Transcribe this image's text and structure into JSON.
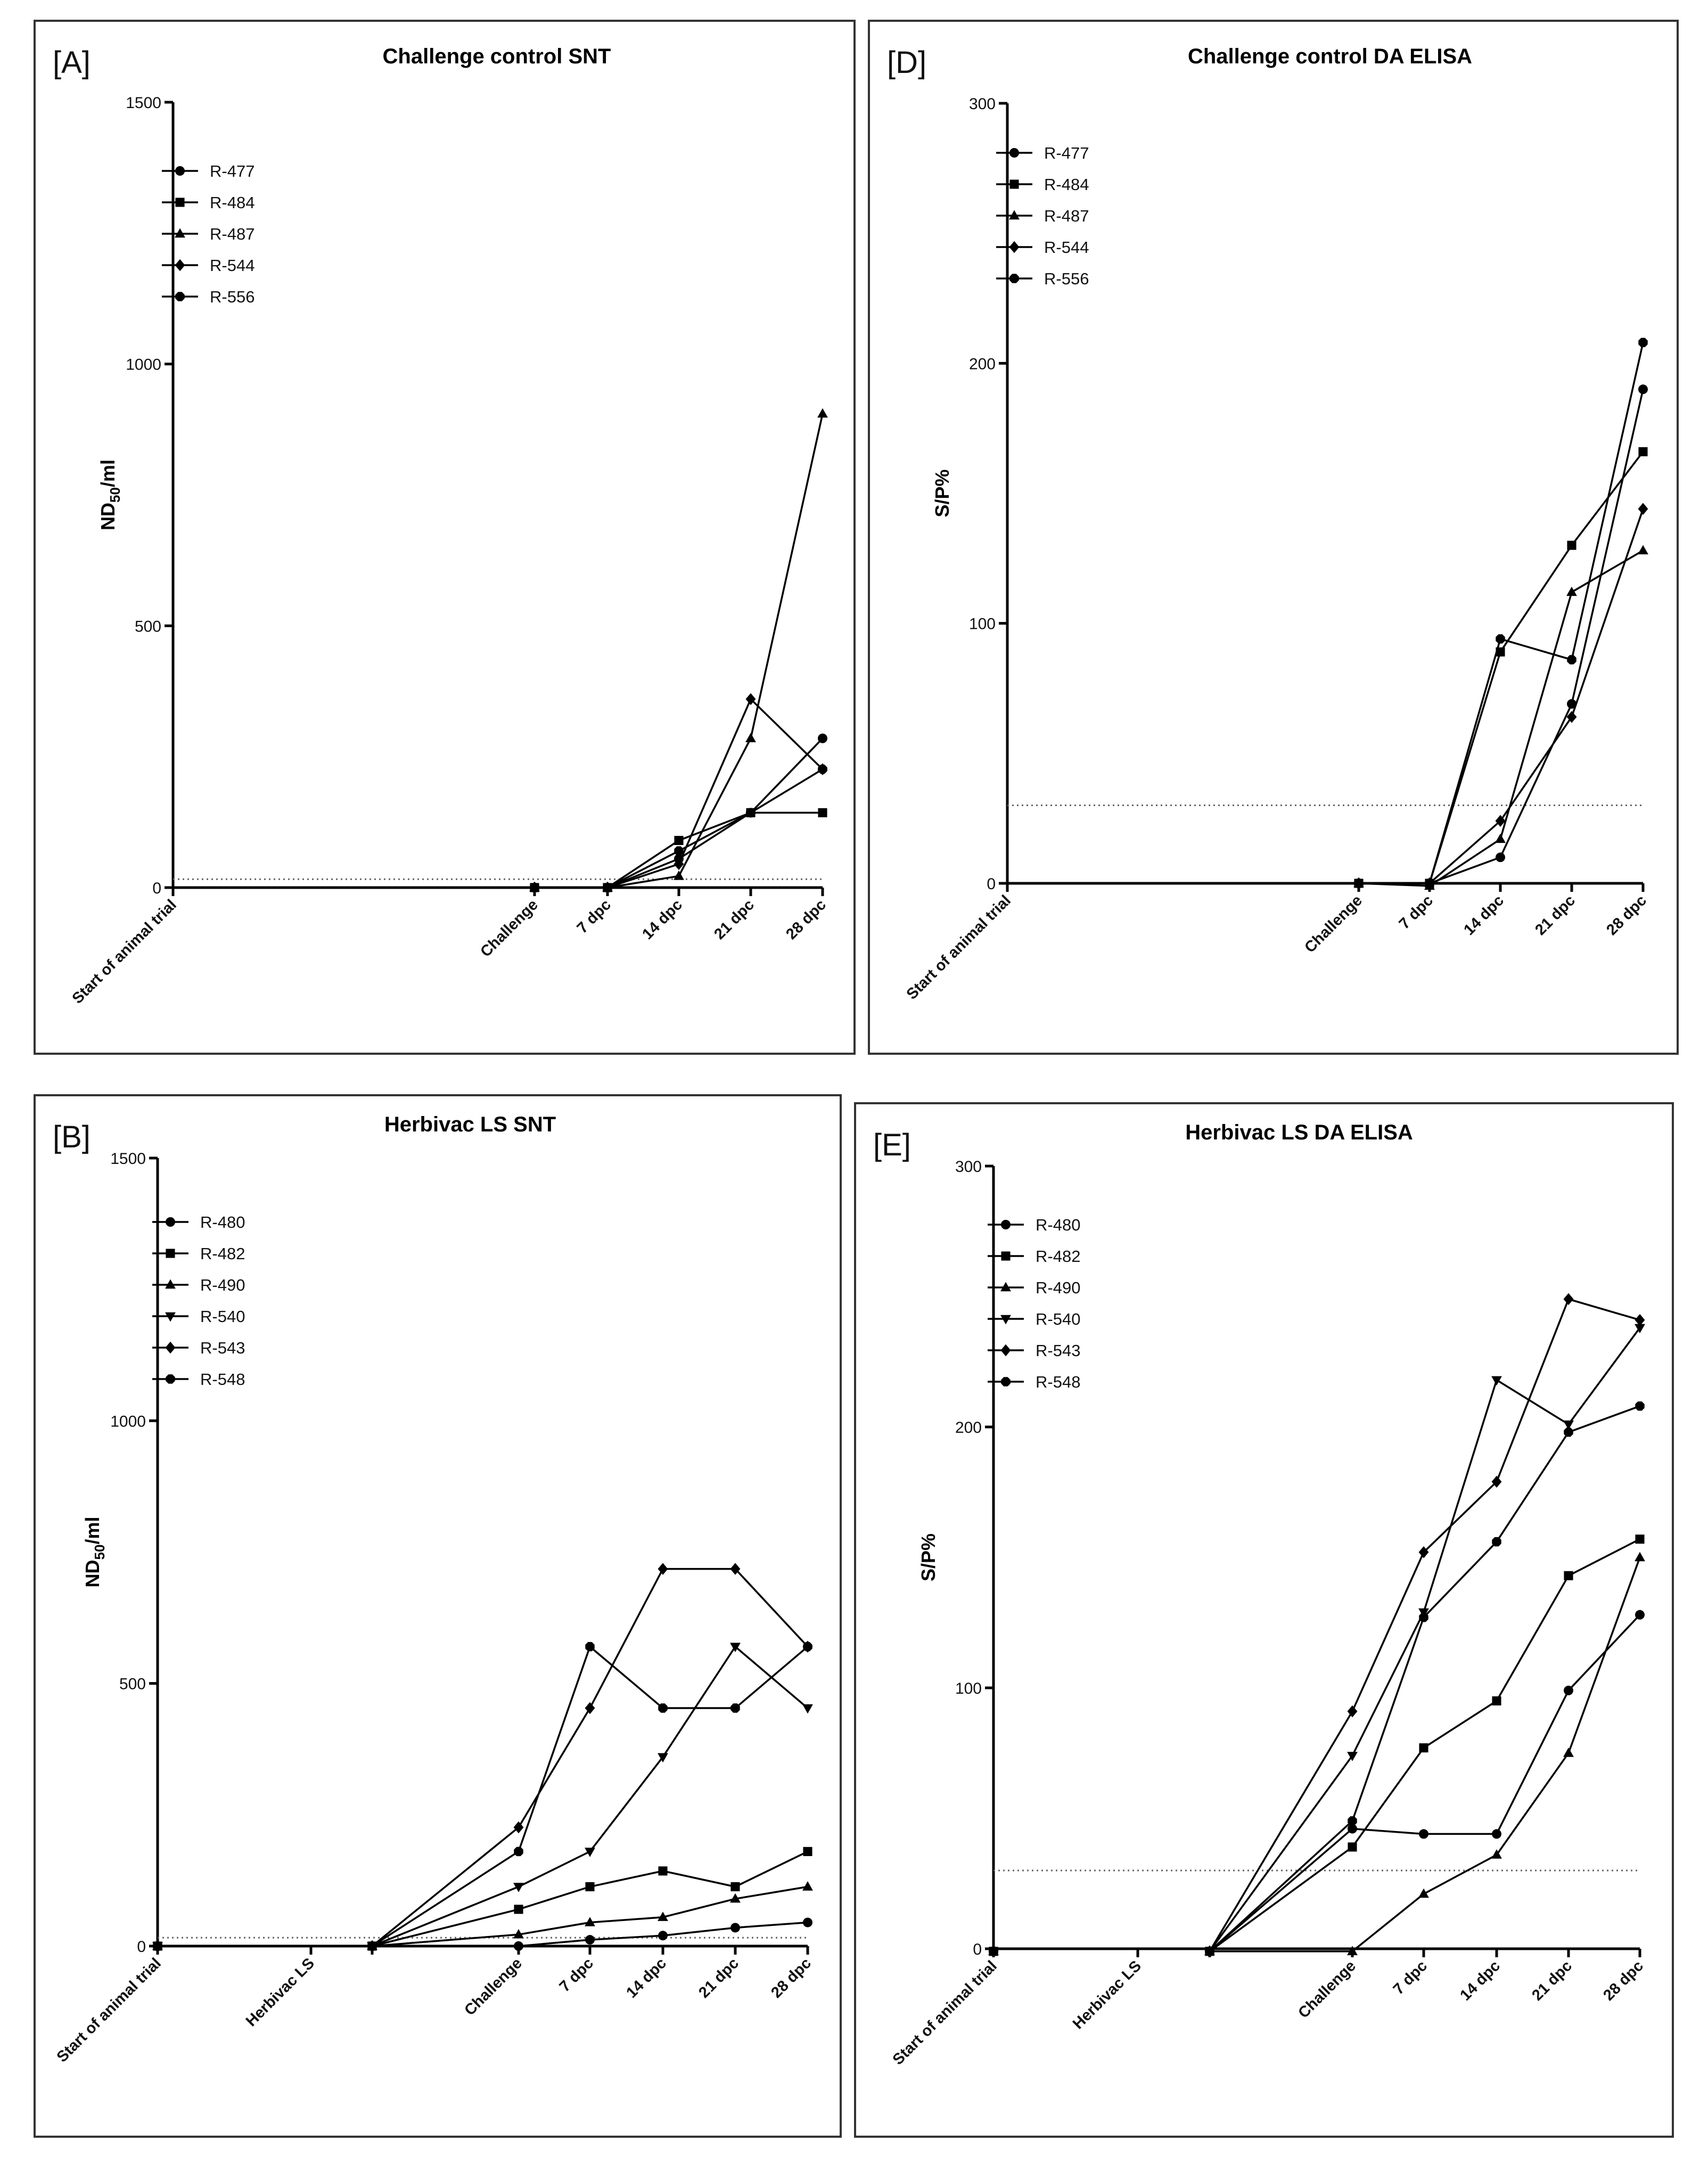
{
  "panels": [
    {
      "label": "[A]",
      "chart_data": {
        "type": "line",
        "title": "Challenge control SNT",
        "xlabel": "",
        "ylabel": "ND50/ml",
        "ylim": [
          0,
          1500
        ],
        "yticks": [
          0,
          500,
          1000,
          1500
        ],
        "categories": [
          "Start of animal trial",
          "Challenge",
          "7 dpc",
          "14 dpc",
          "21 dpc",
          "28 dpc"
        ],
        "threshold": 16,
        "series": [
          {
            "name": "R-477",
            "marker": "circle",
            "values": [
              null,
              0,
              0,
              55,
              143,
              285
            ]
          },
          {
            "name": "R-484",
            "marker": "square",
            "values": [
              null,
              0,
              0,
              90,
              143,
              143
            ]
          },
          {
            "name": "R-487",
            "marker": "triangle-up",
            "values": [
              null,
              0,
              0,
              22,
              285,
              905
            ]
          },
          {
            "name": "R-544",
            "marker": "diamond",
            "values": [
              null,
              0,
              0,
              45,
              360,
              226
            ]
          },
          {
            "name": "R-556",
            "marker": "hexagon",
            "values": [
              null,
              0,
              0,
              70,
              143,
              226
            ]
          }
        ]
      }
    },
    {
      "label": "[D]",
      "chart_data": {
        "type": "line",
        "title": "Challenge control DA ELISA",
        "xlabel": "",
        "ylabel": "S/P%",
        "ylim": [
          0,
          300
        ],
        "yticks": [
          0,
          100,
          200,
          300
        ],
        "categories": [
          "Start of animal trial",
          "Challenge",
          "7 dpc",
          "14 dpc",
          "21 dpc",
          "28 dpc"
        ],
        "threshold": 30,
        "series": [
          {
            "name": "R-477",
            "marker": "circle",
            "values": [
              null,
              0,
              0,
              10,
              69,
              190
            ]
          },
          {
            "name": "R-484",
            "marker": "square",
            "values": [
              null,
              0,
              0,
              89,
              130,
              166
            ]
          },
          {
            "name": "R-487",
            "marker": "triangle-up",
            "values": [
              null,
              0,
              -1,
              17,
              112,
              128
            ]
          },
          {
            "name": "R-544",
            "marker": "diamond",
            "values": [
              null,
              0,
              0,
              24,
              64,
              144
            ]
          },
          {
            "name": "R-556",
            "marker": "hexagon",
            "values": [
              null,
              0,
              0,
              94,
              86,
              208
            ]
          }
        ]
      }
    },
    {
      "label": "[B]",
      "chart_data": {
        "type": "line",
        "title": "Herbivac LS SNT",
        "xlabel": "",
        "ylabel": "ND50/ml",
        "ylim": [
          0,
          1500
        ],
        "yticks": [
          0,
          500,
          1000,
          1500
        ],
        "categories": [
          "Start of animal trial",
          "Herbivac LS",
          "",
          "Challenge",
          "7 dpc",
          "14 dpc",
          "21 dpc",
          "28 dpc"
        ],
        "threshold": 16,
        "series": [
          {
            "name": "R-480",
            "marker": "circle",
            "values": [
              0,
              null,
              0,
              0,
              12,
              20,
              35,
              45
            ]
          },
          {
            "name": "R-482",
            "marker": "square",
            "values": [
              0,
              null,
              0,
              70,
              113,
              143,
              113,
              180
            ]
          },
          {
            "name": "R-490",
            "marker": "triangle-up",
            "values": [
              0,
              null,
              0,
              22,
              45,
              55,
              90,
              113
            ]
          },
          {
            "name": "R-540",
            "marker": "triangle-down",
            "values": [
              0,
              null,
              0,
              113,
              180,
              360,
              570,
              453
            ]
          },
          {
            "name": "R-543",
            "marker": "diamond",
            "values": [
              0,
              null,
              0,
              226,
              453,
              718,
              718,
              570
            ]
          },
          {
            "name": "R-548",
            "marker": "hexagon",
            "values": [
              0,
              null,
              0,
              180,
              570,
              453,
              453,
              570
            ]
          }
        ]
      }
    },
    {
      "label": "[E]",
      "chart_data": {
        "type": "line",
        "title": "Herbivac LS DA ELISA",
        "xlabel": "",
        "ylabel": "S/P%",
        "ylim": [
          0,
          300
        ],
        "yticks": [
          0,
          100,
          200,
          300
        ],
        "categories": [
          "Start of animal trial",
          "Herbivac LS",
          "",
          "Challenge",
          "7 dpc",
          "14 dpc",
          "21 dpc",
          "28 dpc"
        ],
        "threshold": 30,
        "series": [
          {
            "name": "R-480",
            "marker": "circle",
            "values": [
              -1,
              null,
              -1,
              46,
              44,
              44,
              99,
              128
            ]
          },
          {
            "name": "R-482",
            "marker": "square",
            "values": [
              -1,
              null,
              -1,
              39,
              77,
              95,
              143,
              157
            ]
          },
          {
            "name": "R-490",
            "marker": "triangle-up",
            "values": [
              -1,
              null,
              -1,
              -1,
              21,
              36,
              75,
              150
            ]
          },
          {
            "name": "R-540",
            "marker": "triangle-down",
            "values": [
              -1,
              null,
              -1,
              74,
              129,
              218,
              201,
              238
            ]
          },
          {
            "name": "R-543",
            "marker": "diamond",
            "values": [
              -1,
              null,
              -1,
              91,
              152,
              179,
              249,
              241
            ]
          },
          {
            "name": "R-548",
            "marker": "hexagon",
            "values": [
              -1,
              null,
              -1,
              49,
              127,
              156,
              198,
              208
            ]
          }
        ]
      }
    }
  ]
}
